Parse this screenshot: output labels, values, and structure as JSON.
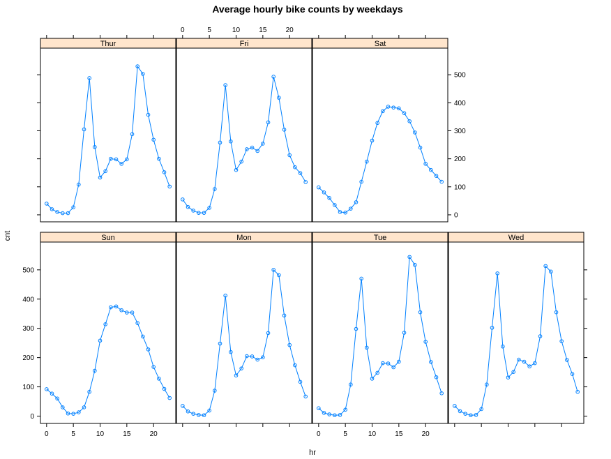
{
  "chart_data": {
    "type": "line",
    "title": "Average hourly bike counts by weekdays",
    "xlabel": "hr",
    "ylabel": "cnt",
    "xlim": [
      -1.15,
      24.15
    ],
    "ylim": [
      -25,
      595
    ],
    "x_ticks": [
      0,
      5,
      10,
      15,
      20
    ],
    "x_tick_labels": [
      "0",
      "5",
      "10",
      "15",
      "20"
    ],
    "y_ticks": [
      0,
      100,
      200,
      300,
      400,
      500
    ],
    "y_tick_labels": [
      "0",
      "100",
      "200",
      "300",
      "400",
      "500"
    ],
    "x": [
      0,
      1,
      2,
      3,
      4,
      5,
      6,
      7,
      8,
      9,
      10,
      11,
      12,
      13,
      14,
      15,
      16,
      17,
      18,
      19,
      20,
      21,
      22,
      23
    ],
    "series": [
      {
        "name": "Sun",
        "values": [
          92,
          77,
          60,
          30,
          9,
          8,
          13,
          30,
          83,
          155,
          258,
          314,
          372,
          375,
          362,
          354,
          354,
          318,
          272,
          228,
          168,
          128,
          93,
          62
        ]
      },
      {
        "name": "Mon",
        "values": [
          35,
          16,
          8,
          4,
          3,
          19,
          87,
          248,
          412,
          219,
          139,
          163,
          205,
          204,
          193,
          201,
          284,
          500,
          482,
          344,
          243,
          174,
          117,
          67
        ]
      },
      {
        "name": "Tue",
        "values": [
          27,
          11,
          6,
          3,
          4,
          22,
          108,
          298,
          470,
          234,
          128,
          148,
          181,
          180,
          167,
          186,
          285,
          544,
          517,
          355,
          254,
          185,
          133,
          78
        ]
      },
      {
        "name": "Wed",
        "values": [
          35,
          17,
          8,
          3,
          4,
          24,
          108,
          302,
          488,
          238,
          132,
          151,
          193,
          186,
          170,
          181,
          273,
          513,
          494,
          355,
          256,
          192,
          144,
          83
        ]
      },
      {
        "name": "Thur",
        "values": [
          40,
          20,
          10,
          6,
          6,
          27,
          108,
          305,
          488,
          242,
          133,
          156,
          200,
          198,
          182,
          198,
          288,
          530,
          503,
          357,
          268,
          200,
          152,
          101
        ]
      },
      {
        "name": "Fri",
        "values": [
          55,
          28,
          15,
          7,
          7,
          25,
          92,
          258,
          463,
          262,
          160,
          190,
          234,
          240,
          228,
          254,
          330,
          493,
          418,
          304,
          213,
          170,
          149,
          117
        ]
      },
      {
        "name": "Sat",
        "values": [
          98,
          80,
          60,
          35,
          10,
          8,
          22,
          45,
          118,
          190,
          265,
          328,
          370,
          386,
          383,
          380,
          363,
          334,
          294,
          240,
          182,
          160,
          139,
          118
        ]
      }
    ],
    "grid": false,
    "legend": "none"
  }
}
